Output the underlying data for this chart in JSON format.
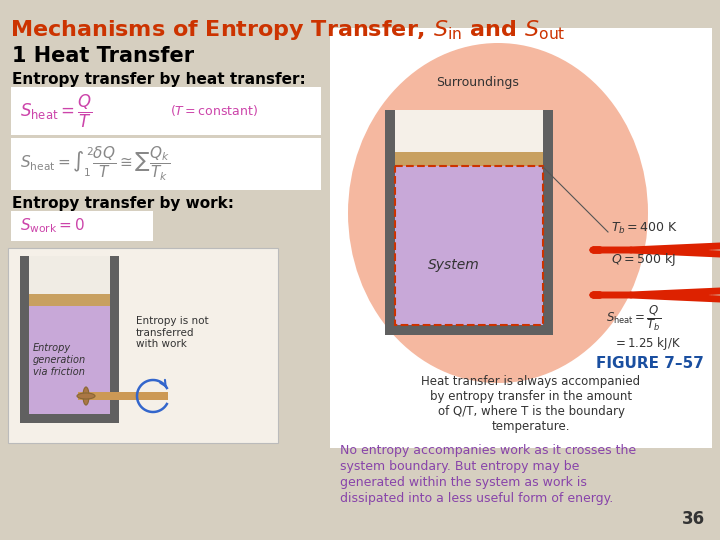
{
  "bg_color": "#d6cfc0",
  "title_color": "#cc3300",
  "title_fontsize": 16,
  "heading1": "1 Heat Transfer",
  "heading1_color": "#000000",
  "heading1_fontsize": 15,
  "label1": "Entropy transfer by heat transfer:",
  "label2": "Entropy transfer by work:",
  "label_fontsize": 11,
  "eq_box_color": "#ffffff",
  "eq_pink_color": "#cc44aa",
  "eq_gray_color": "#888888",
  "body_text_color": "#000000",
  "figure_caption": "FIGURE 7–57",
  "figure_caption_color": "#1a4fa0",
  "fig_text": [
    "Heat transfer is always accompanied",
    "by entropy transfer in the amount",
    "of Q/T, where T is the boundary",
    "temperature."
  ],
  "bottom_texts": [
    "No entropy accompanies work as it crosses the",
    "system boundary. But entropy may be",
    "generated within the system as work is",
    "dissipated into a less useful form of energy."
  ],
  "bottom_text_color": "#8844aa",
  "page_num": "36",
  "surroundings_blob_color": "#f5b8a0",
  "liquid_fill_color": "#c8a8d8",
  "liquid_top_color": "#c8a060",
  "container_wall_color": "#606060",
  "heat_arrow_color": "#dd2200",
  "dashed_rect_color": "#cc3300",
  "rotate_arrow_color": "#3366cc",
  "shaft_color": "#cc9955",
  "friction_gear_color": "#aa7744"
}
